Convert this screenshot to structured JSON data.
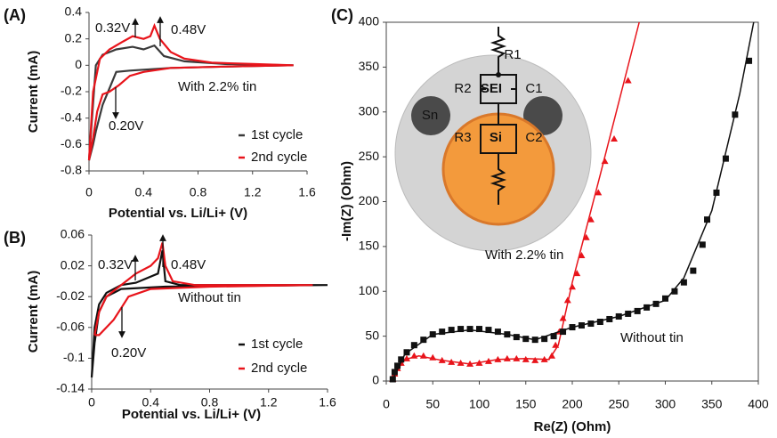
{
  "chart_data": [
    {
      "type": "line",
      "title": "(A)",
      "xlabel": "Potential vs. Li/Li+ (V)",
      "ylabel": "Current (mA)",
      "xlim": [
        0,
        1.6
      ],
      "ylim": [
        -0.8,
        0.4
      ],
      "xticks": [
        0,
        0.4,
        0.8,
        1.2,
        1.6
      ],
      "yticks": [
        -0.8,
        -0.6,
        -0.4,
        -0.2,
        0,
        0.2,
        0.4
      ],
      "annotations": [
        "0.32V",
        "0.48V",
        "0.20V",
        "With 2.2% tin"
      ],
      "series": [
        {
          "name": "1st cycle",
          "color": "#3a3a3a",
          "x": [
            0,
            0.05,
            0.1,
            0.2,
            0.32,
            0.4,
            0.48,
            0.55,
            0.7,
            1.0,
            1.5,
            1.0,
            0.6,
            0.3,
            0.2,
            0.1,
            0.05,
            0.03,
            0
          ],
          "values": [
            -0.72,
            0,
            0.08,
            0.12,
            0.14,
            0.12,
            0.15,
            0.07,
            0.03,
            0.01,
            0,
            -0.01,
            -0.02,
            -0.04,
            -0.05,
            -0.3,
            -0.5,
            -0.6,
            -0.72
          ]
        },
        {
          "name": "2nd cycle",
          "color": "#e8141b",
          "x": [
            0,
            0.03,
            0.08,
            0.15,
            0.25,
            0.32,
            0.4,
            0.45,
            0.48,
            0.52,
            0.6,
            0.7,
            0.9,
            1.2,
            1.5,
            1.0,
            0.6,
            0.4,
            0.3,
            0.22,
            0.15,
            0.1,
            0.06,
            0.03,
            0
          ],
          "values": [
            -0.72,
            -0.2,
            0.05,
            0.12,
            0.18,
            0.22,
            0.2,
            0.22,
            0.3,
            0.2,
            0.1,
            0.05,
            0.02,
            0.01,
            0,
            -0.01,
            -0.02,
            -0.05,
            -0.08,
            -0.15,
            -0.2,
            -0.22,
            -0.35,
            -0.55,
            -0.72
          ]
        }
      ]
    },
    {
      "type": "line",
      "title": "(B)",
      "xlabel": "Potential vs. Li/Li+ (V)",
      "ylabel": "Current (mA)",
      "xlim": [
        0,
        1.6
      ],
      "ylim": [
        -0.14,
        0.06
      ],
      "xticks": [
        0,
        0.4,
        0.8,
        1.2,
        1.6
      ],
      "yticks": [
        -0.14,
        -0.1,
        -0.06,
        -0.02,
        0.02,
        0.06
      ],
      "annotations": [
        "0.32V",
        "0.48V",
        "0.20V",
        "Without tin"
      ],
      "series": [
        {
          "name": "1st cycle",
          "color": "#111111",
          "x": [
            0,
            0.02,
            0.05,
            0.1,
            0.2,
            0.3,
            0.45,
            0.48,
            0.5,
            0.6,
            1.0,
            1.6,
            1.0,
            0.5,
            0.2,
            0.1,
            0.05,
            0.02,
            0
          ],
          "values": [
            -0.125,
            -0.06,
            -0.03,
            -0.015,
            -0.005,
            -0.002,
            0.01,
            0.04,
            0,
            -0.005,
            -0.005,
            -0.005,
            -0.006,
            -0.007,
            -0.01,
            -0.02,
            -0.04,
            -0.08,
            -0.125
          ]
        },
        {
          "name": "2nd cycle",
          "color": "#e8141b",
          "x": [
            0.02,
            0.05,
            0.1,
            0.2,
            0.3,
            0.4,
            0.45,
            0.48,
            0.5,
            0.55,
            0.7,
            1.5,
            0.8,
            0.4,
            0.25,
            0.2,
            0.15,
            0.1,
            0.05,
            0.02
          ],
          "values": [
            -0.07,
            -0.04,
            -0.02,
            -0.005,
            0.01,
            0.02,
            0.03,
            0.05,
            0.02,
            0,
            -0.005,
            -0.005,
            -0.007,
            -0.01,
            -0.02,
            -0.035,
            -0.05,
            -0.06,
            -0.07,
            -0.07
          ]
        }
      ]
    },
    {
      "type": "scatter",
      "title": "(C)",
      "xlabel": "Re(Z) (Ohm)",
      "ylabel": "-Im(Z) (Ohm)",
      "xlim": [
        0,
        400
      ],
      "ylim": [
        0,
        400
      ],
      "xticks": [
        0,
        50,
        100,
        150,
        200,
        250,
        300,
        350,
        400
      ],
      "yticks": [
        0,
        50,
        100,
        150,
        200,
        250,
        300,
        350,
        400
      ],
      "inset_labels": [
        "R1",
        "R2",
        "SEI",
        "C1",
        "Sn",
        "R3",
        "Si",
        "C2"
      ],
      "series": [
        {
          "name": "With 2.2% tin",
          "color": "#e8141b",
          "marker": "triangle",
          "x": [
            7,
            9,
            12,
            16,
            22,
            30,
            40,
            50,
            60,
            70,
            80,
            90,
            100,
            110,
            120,
            130,
            140,
            150,
            160,
            170,
            178,
            182,
            186,
            190,
            195,
            200,
            205,
            210,
            215,
            220,
            228,
            235,
            245,
            260
          ],
          "values": [
            2,
            8,
            14,
            20,
            25,
            28,
            28,
            26,
            23,
            21,
            20,
            19,
            20,
            22,
            24,
            25,
            25,
            24,
            23,
            24,
            28,
            40,
            55,
            70,
            90,
            105,
            120,
            140,
            160,
            180,
            210,
            245,
            270,
            335
          ]
        },
        {
          "color": "#e8141b",
          "marker": "none",
          "x": [
            6,
            10,
            20,
            35,
            60,
            90,
            120,
            150,
            175,
            185,
            200,
            230,
            272
          ],
          "values": [
            0,
            10,
            24,
            28,
            23,
            19,
            24,
            25,
            24,
            40,
            110,
            230,
            400
          ]
        },
        {
          "name": "Without tin",
          "color": "#111111",
          "marker": "square",
          "x": [
            7,
            9,
            12,
            16,
            22,
            30,
            40,
            50,
            60,
            70,
            80,
            90,
            100,
            110,
            120,
            130,
            140,
            150,
            160,
            170,
            180,
            190,
            200,
            210,
            220,
            230,
            240,
            250,
            260,
            270,
            280,
            290,
            300,
            310,
            320,
            330,
            340,
            345,
            355,
            365,
            375,
            390
          ],
          "values": [
            2,
            10,
            17,
            24,
            32,
            40,
            46,
            52,
            55,
            57,
            58,
            58,
            58,
            57,
            55,
            52,
            49,
            47,
            46,
            47,
            50,
            55,
            60,
            62,
            64,
            66,
            69,
            72,
            75,
            78,
            82,
            86,
            92,
            100,
            110,
            123,
            152,
            180,
            210,
            248,
            297,
            357
          ]
        },
        {
          "color": "#111111",
          "marker": "none",
          "x": [
            6,
            20,
            50,
            90,
            130,
            160,
            200,
            250,
            300,
            320,
            350,
            380,
            395
          ],
          "values": [
            0,
            30,
            52,
            57,
            52,
            46,
            60,
            72,
            90,
            115,
            190,
            320,
            400
          ]
        }
      ]
    }
  ]
}
